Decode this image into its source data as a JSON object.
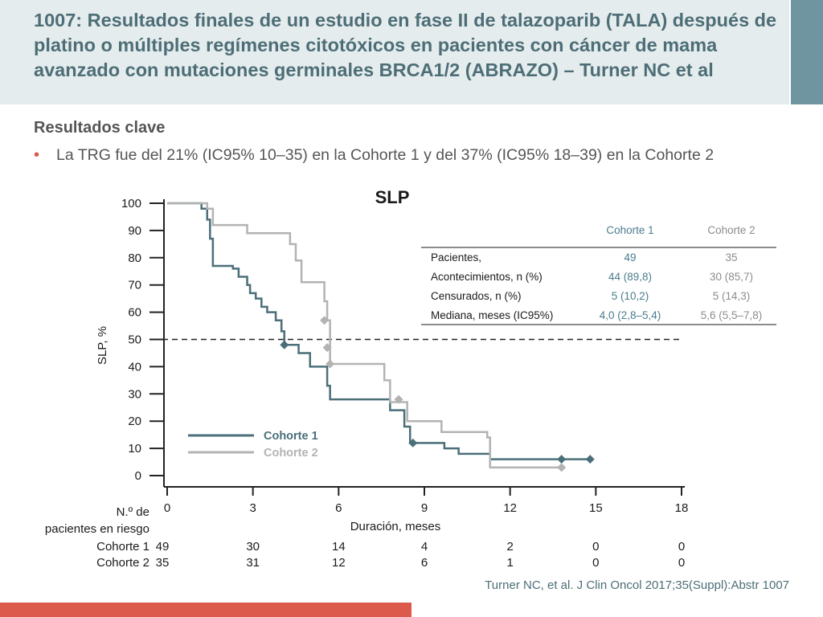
{
  "slide": {
    "title": "1007: Resultados finales de un estudio en fase II de talazoparib (TALA) después de platino o múltiples regímenes citotóxicos en pacientes con cáncer de mama avanzado con mutaciones germinales BRCA1/2 (ABRAZO) – Turner NC et al",
    "section": "Resultados clave",
    "bullet": "La TRG fue del 21% (IC95% 10–35) en la Cohorte 1 y del 37% (IC95% 18–39) en la Cohorte 2",
    "citation": "Turner NC, et al. J Clin Oncol 2017;35(Suppl):Abstr 1007"
  },
  "colors": {
    "cohort1": "#4b6f79",
    "cohort2": "#b3b3b3",
    "table_header1": "#4b7c8e",
    "accent": "#d9574a",
    "header_bg": "#e5ecee",
    "title_text": "#4d6e76"
  },
  "chart_data": {
    "type": "line",
    "title": "SLP",
    "xlabel": "Duración, meses",
    "ylabel": "SLP, %",
    "xlim": [
      0,
      18
    ],
    "ylim": [
      0,
      100
    ],
    "xticks": [
      0,
      3,
      6,
      9,
      12,
      15,
      18
    ],
    "yticks": [
      0,
      10,
      20,
      30,
      40,
      50,
      60,
      70,
      80,
      90,
      100
    ],
    "median_reference_y": 50,
    "legend_position": "bottom-left",
    "series": [
      {
        "name": "Cohorte 1",
        "steps": [
          [
            0,
            100
          ],
          [
            1.2,
            98
          ],
          [
            1.4,
            94
          ],
          [
            1.5,
            87
          ],
          [
            1.6,
            77
          ],
          [
            2.3,
            76
          ],
          [
            2.5,
            73
          ],
          [
            2.8,
            70
          ],
          [
            2.9,
            67
          ],
          [
            3.1,
            65
          ],
          [
            3.3,
            62
          ],
          [
            3.5,
            60
          ],
          [
            3.8,
            57
          ],
          [
            4.0,
            53
          ],
          [
            4.1,
            48
          ],
          [
            4.6,
            45
          ],
          [
            5.0,
            40
          ],
          [
            5.6,
            33
          ],
          [
            5.7,
            28
          ],
          [
            7.8,
            24
          ],
          [
            8.3,
            18
          ],
          [
            8.5,
            12
          ],
          [
            9.7,
            10
          ],
          [
            10.2,
            8
          ],
          [
            11.3,
            6
          ],
          [
            14.8,
            6
          ]
        ],
        "censored": [
          [
            4.1,
            48
          ],
          [
            8.6,
            12
          ],
          [
            13.8,
            6
          ],
          [
            14.8,
            6
          ]
        ]
      },
      {
        "name": "Cohorte 2",
        "steps": [
          [
            0,
            100
          ],
          [
            1.4,
            98
          ],
          [
            1.6,
            92
          ],
          [
            2.8,
            89
          ],
          [
            4.3,
            85
          ],
          [
            4.5,
            79
          ],
          [
            4.7,
            71
          ],
          [
            5.5,
            64
          ],
          [
            5.6,
            57
          ],
          [
            5.7,
            41
          ],
          [
            7.6,
            35
          ],
          [
            7.8,
            27
          ],
          [
            8.4,
            20
          ],
          [
            9.6,
            16
          ],
          [
            11.2,
            14
          ],
          [
            11.3,
            3
          ],
          [
            13.8,
            3
          ]
        ],
        "censored": [
          [
            5.5,
            57
          ],
          [
            5.6,
            47
          ],
          [
            5.7,
            41
          ],
          [
            8.1,
            28
          ],
          [
            13.8,
            3
          ]
        ]
      }
    ]
  },
  "results_table": {
    "headers": [
      "",
      "Cohorte 1",
      "Cohorte 2"
    ],
    "rows": [
      [
        "Pacientes,",
        "49",
        "35"
      ],
      [
        "Acontecimientos, n (%)",
        "44 (89,8)",
        "30 (85,7)"
      ],
      [
        "Censurados, n (%)",
        "5 (10,2)",
        "5 (14,3)"
      ],
      [
        "Mediana, meses (IC95%)",
        "4,0 (2,8–5,4)",
        "5,6 (5,5–7,8)"
      ]
    ]
  },
  "at_risk": {
    "label": "N.º de pacientes en riesgo",
    "label_lines": [
      "N.º de",
      "pacientes en riesgo"
    ],
    "rows": [
      {
        "cohort": "Cohorte 1",
        "counts": [
          "49",
          "30",
          "14",
          "4",
          "2",
          "0",
          "0"
        ]
      },
      {
        "cohort": "Cohorte 2",
        "counts": [
          "35",
          "31",
          "12",
          "6",
          "1",
          "0",
          "0"
        ]
      }
    ]
  }
}
